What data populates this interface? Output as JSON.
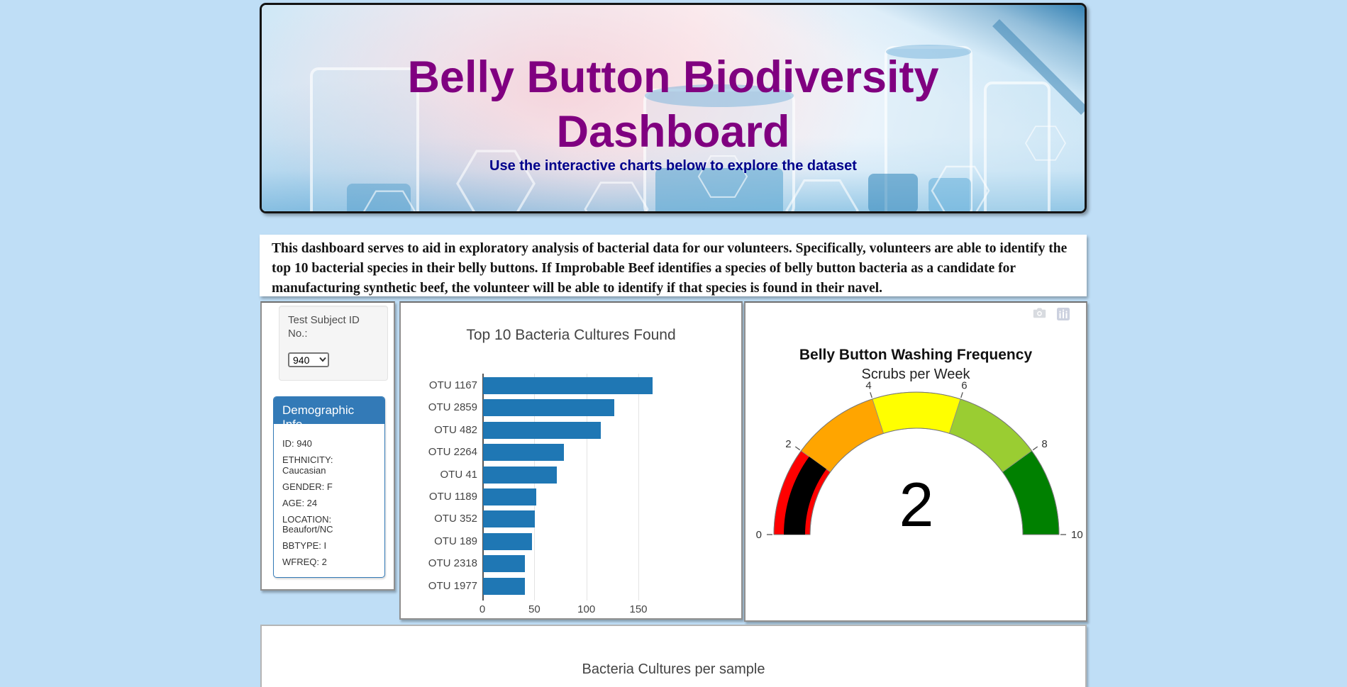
{
  "page": {
    "background_color": "#bfdef6"
  },
  "header": {
    "title_line1": "Belly Button Biodiversity",
    "title_line2": "Dashboard",
    "subtitle": "Use the interactive charts below to explore the dataset",
    "title_color": "#800080",
    "subtitle_color": "#00008b"
  },
  "intro": {
    "text": "This dashboard serves to aid in exploratory analysis of bacterial data for our volunteers. Specifically, volunteers are able to identify the top 10 bacterial species in their belly buttons. If Improbable Beef identifies a species of belly button bacteria as a candidate for manufacturing synthetic beef, the volunteer will be able to identify if that species is found in their navel."
  },
  "selector": {
    "label_line1": "Test Subject ID",
    "label_line2": "No.:",
    "selected_value": "940"
  },
  "demographics": {
    "panel_title": "Demographic Info",
    "header_color": "#337ab7",
    "items": [
      "ID: 940",
      "ETHNICITY: Caucasian",
      "GENDER: F",
      "AGE: 24",
      "LOCATION: Beaufort/NC",
      "BBTYPE: I",
      "WFREQ: 2"
    ]
  },
  "modebar": {
    "icons": [
      "camera-icon",
      "plotly-logo-icon"
    ]
  },
  "chart_data": [
    {
      "type": "bar",
      "orientation": "horizontal",
      "title": "Top 10 Bacteria Cultures Found",
      "categories": [
        "OTU 1167",
        "OTU 2859",
        "OTU 482",
        "OTU 2264",
        "OTU 41",
        "OTU 1189",
        "OTU 352",
        "OTU 189",
        "OTU 2318",
        "OTU 1977"
      ],
      "values": [
        163,
        126,
        113,
        78,
        71,
        51,
        50,
        47,
        40,
        40
      ],
      "bar_color": "#1f77b4",
      "x_ticks": [
        0,
        50,
        100,
        150
      ],
      "xlim": [
        0,
        180
      ],
      "grid": true,
      "xlabel": "",
      "ylabel": ""
    },
    {
      "type": "gauge",
      "title": "Belly Button Washing Frequency",
      "subtitle": "Scrubs per Week",
      "value": 2,
      "min": 0,
      "max": 10,
      "tick_values": [
        0,
        2,
        4,
        6,
        8,
        10
      ],
      "segments": [
        {
          "range": [
            0,
            2
          ],
          "color": "#ff0000"
        },
        {
          "range": [
            2,
            4
          ],
          "color": "#ffa500"
        },
        {
          "range": [
            4,
            6
          ],
          "color": "#ffff00"
        },
        {
          "range": [
            6,
            8
          ],
          "color": "#9acd32"
        },
        {
          "range": [
            8,
            10
          ],
          "color": "#008000"
        }
      ],
      "bar_color": "#000000"
    },
    {
      "type": "bubble",
      "title": "Bacteria Cultures per sample",
      "note_visible_portion": "title only, chart cut off at bottom of viewport"
    }
  ]
}
